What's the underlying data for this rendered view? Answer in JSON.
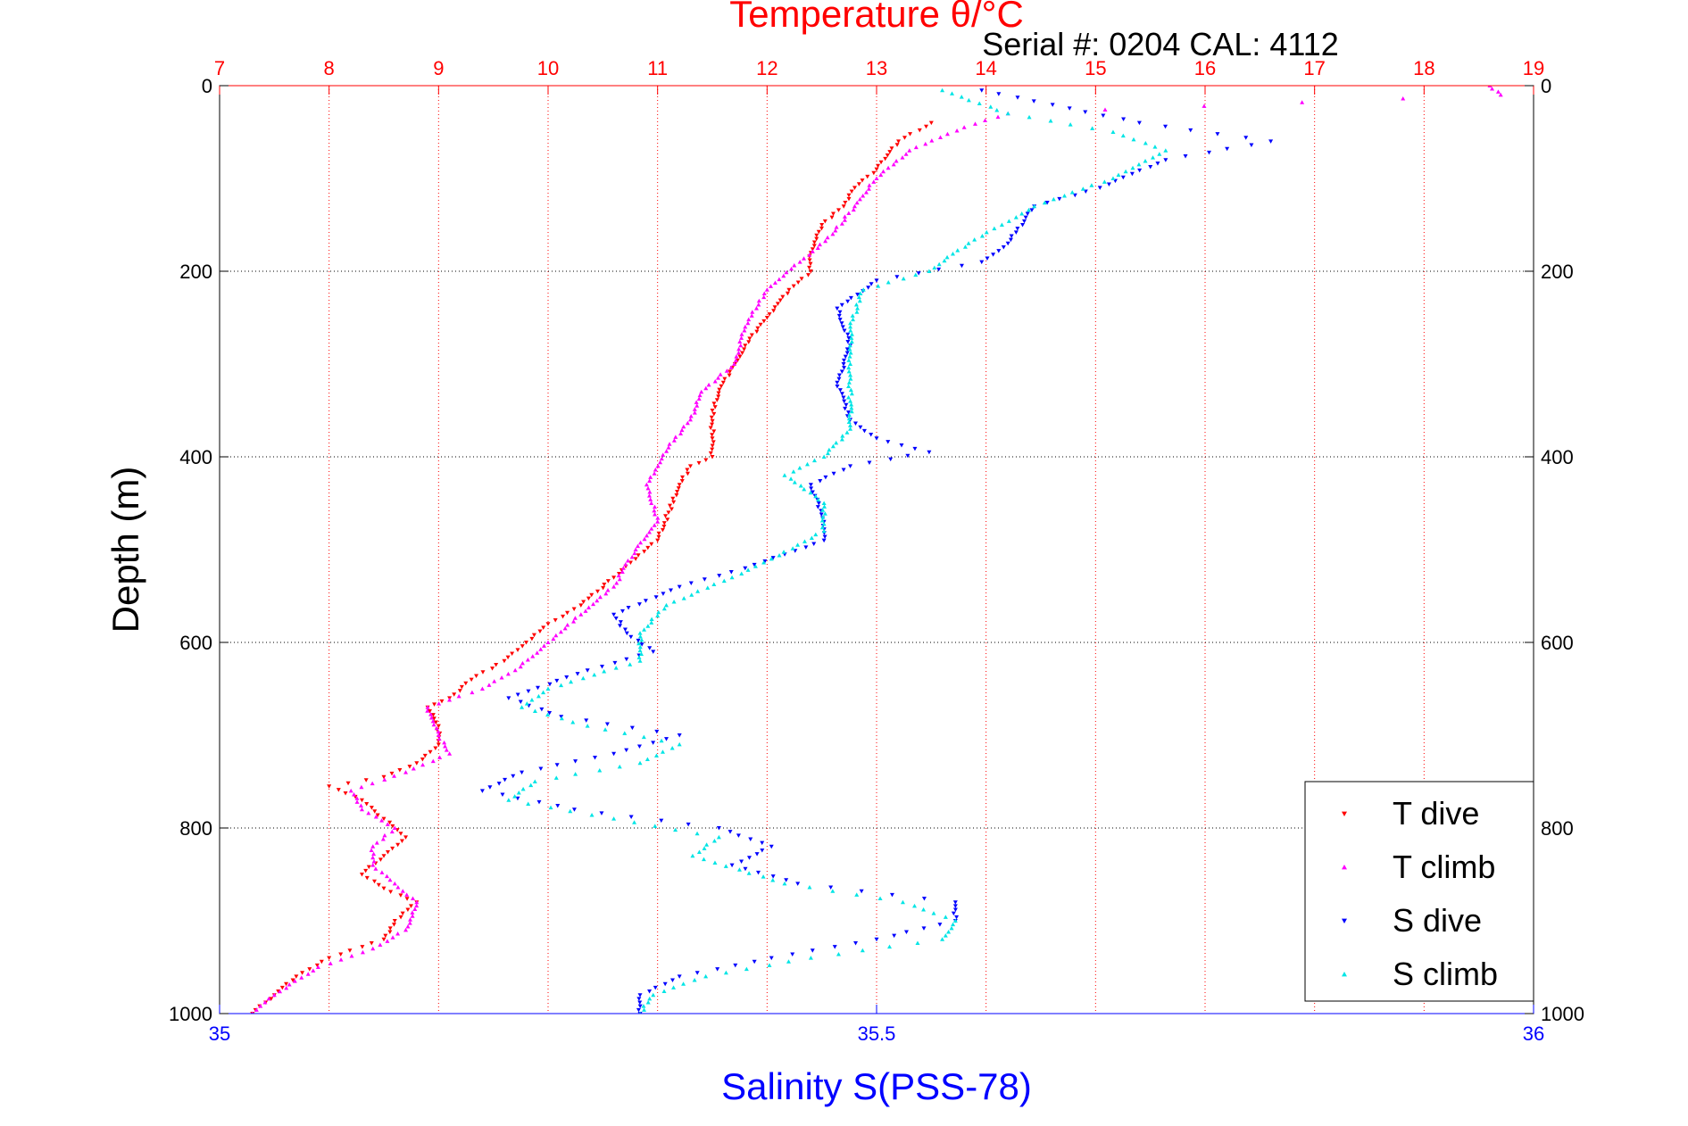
{
  "chart_data": {
    "type": "scatter",
    "title": "Temperature θ/°C",
    "subtitle": "Serial #: 0204  CAL: 4112",
    "xlabel": "Salinity S(PSS-78)",
    "ylabel": "Depth (m)",
    "axes": {
      "temperature": {
        "position": "top",
        "range": [
          7,
          19
        ],
        "ticks": [
          "7",
          "8",
          "9",
          "10",
          "11",
          "12",
          "13",
          "14",
          "15",
          "16",
          "17",
          "18",
          "19"
        ],
        "color": "#ff0000"
      },
      "salinity": {
        "position": "bottom",
        "range": [
          35,
          36
        ],
        "ticks": [
          "35",
          "35.5",
          "36"
        ],
        "color": "#0000ff"
      },
      "depth": {
        "position": "left-right",
        "range": [
          0,
          1000
        ],
        "reversed": true,
        "ticks": [
          "0",
          "200",
          "400",
          "600",
          "800",
          "1000"
        ],
        "color": "#000000"
      }
    },
    "grid": true,
    "legend": {
      "placement": "bottom-right",
      "entries": [
        "T dive",
        "T climb",
        "S dive",
        "S climb"
      ]
    },
    "series": [
      {
        "name": "T dive",
        "axis": "temperature",
        "color": "#ff0000",
        "marker": "triangle-down",
        "points": [
          [
            13.5,
            40
          ],
          [
            13.2,
            60
          ],
          [
            13.0,
            90
          ],
          [
            12.8,
            110
          ],
          [
            12.7,
            130
          ],
          [
            12.5,
            150
          ],
          [
            12.4,
            180
          ],
          [
            12.4,
            200
          ],
          [
            12.2,
            220
          ],
          [
            12.0,
            250
          ],
          [
            11.8,
            280
          ],
          [
            11.6,
            320
          ],
          [
            11.5,
            350
          ],
          [
            11.5,
            380
          ],
          [
            11.5,
            400
          ],
          [
            11.3,
            410
          ],
          [
            11.2,
            430
          ],
          [
            11.1,
            460
          ],
          [
            11.0,
            490
          ],
          [
            10.8,
            510
          ],
          [
            10.6,
            530
          ],
          [
            10.3,
            560
          ],
          [
            10.0,
            580
          ],
          [
            9.8,
            600
          ],
          [
            9.6,
            620
          ],
          [
            9.3,
            640
          ],
          [
            9.1,
            660
          ],
          [
            8.9,
            670
          ],
          [
            9.0,
            690
          ],
          [
            9.0,
            710
          ],
          [
            8.8,
            730
          ],
          [
            8.5,
            745
          ],
          [
            8.0,
            755
          ],
          [
            8.3,
            770
          ],
          [
            8.5,
            790
          ],
          [
            8.7,
            810
          ],
          [
            8.5,
            830
          ],
          [
            8.3,
            850
          ],
          [
            8.5,
            865
          ],
          [
            8.8,
            880
          ],
          [
            8.6,
            900
          ],
          [
            8.5,
            920
          ],
          [
            8.0,
            940
          ],
          [
            7.7,
            960
          ],
          [
            7.5,
            980
          ],
          [
            7.3,
            1000
          ]
        ]
      },
      {
        "name": "T climb",
        "axis": "temperature",
        "color": "#ff00ff",
        "marker": "triangle-up",
        "points": [
          [
            18.6,
            0
          ],
          [
            18.7,
            10
          ],
          [
            14.2,
            30
          ],
          [
            13.8,
            45
          ],
          [
            13.3,
            70
          ],
          [
            13.0,
            100
          ],
          [
            12.8,
            130
          ],
          [
            12.6,
            160
          ],
          [
            12.3,
            190
          ],
          [
            12.0,
            220
          ],
          [
            11.8,
            260
          ],
          [
            11.7,
            300
          ],
          [
            11.4,
            330
          ],
          [
            11.3,
            360
          ],
          [
            11.1,
            390
          ],
          [
            10.9,
            430
          ],
          [
            11.0,
            470
          ],
          [
            10.8,
            500
          ],
          [
            10.6,
            540
          ],
          [
            10.3,
            570
          ],
          [
            10.0,
            600
          ],
          [
            9.7,
            630
          ],
          [
            9.4,
            650
          ],
          [
            8.9,
            670
          ],
          [
            9.0,
            700
          ],
          [
            9.1,
            720
          ],
          [
            8.7,
            740
          ],
          [
            8.2,
            760
          ],
          [
            8.3,
            780
          ],
          [
            8.6,
            800
          ],
          [
            8.4,
            820
          ],
          [
            8.4,
            840
          ],
          [
            8.6,
            860
          ],
          [
            8.8,
            880
          ],
          [
            8.7,
            910
          ],
          [
            8.4,
            930
          ],
          [
            7.9,
            950
          ],
          [
            7.5,
            980
          ],
          [
            7.3,
            1000
          ]
        ]
      },
      {
        "name": "S dive",
        "axis": "salinity",
        "color": "#0000ff",
        "marker": "triangle-down",
        "points": [
          [
            35.58,
            5
          ],
          [
            35.7,
            40
          ],
          [
            35.8,
            60
          ],
          [
            35.72,
            80
          ],
          [
            35.67,
            110
          ],
          [
            35.62,
            130
          ],
          [
            35.6,
            170
          ],
          [
            35.58,
            190
          ],
          [
            35.5,
            210
          ],
          [
            35.47,
            240
          ],
          [
            35.48,
            280
          ],
          [
            35.47,
            320
          ],
          [
            35.48,
            360
          ],
          [
            35.5,
            380
          ],
          [
            35.54,
            395
          ],
          [
            35.48,
            410
          ],
          [
            35.45,
            430
          ],
          [
            35.46,
            470
          ],
          [
            35.46,
            490
          ],
          [
            35.4,
            520
          ],
          [
            35.35,
            540
          ],
          [
            35.3,
            570
          ],
          [
            35.31,
            590
          ],
          [
            35.33,
            610
          ],
          [
            35.28,
            630
          ],
          [
            35.22,
            660
          ],
          [
            35.26,
            680
          ],
          [
            35.35,
            700
          ],
          [
            35.3,
            720
          ],
          [
            35.23,
            740
          ],
          [
            35.2,
            760
          ],
          [
            35.27,
            780
          ],
          [
            35.38,
            800
          ],
          [
            35.42,
            820
          ],
          [
            35.39,
            840
          ],
          [
            35.44,
            860
          ],
          [
            35.56,
            880
          ],
          [
            35.56,
            900
          ],
          [
            35.5,
            920
          ],
          [
            35.42,
            940
          ],
          [
            35.35,
            960
          ],
          [
            35.32,
            980
          ],
          [
            35.32,
            1000
          ]
        ]
      },
      {
        "name": "S climb",
        "axis": "salinity",
        "color": "#00e5e5",
        "marker": "triangle-up",
        "points": [
          [
            35.55,
            5
          ],
          [
            35.6,
            30
          ],
          [
            35.68,
            50
          ],
          [
            35.72,
            70
          ],
          [
            35.68,
            100
          ],
          [
            35.62,
            130
          ],
          [
            35.57,
            170
          ],
          [
            35.54,
            200
          ],
          [
            35.49,
            220
          ],
          [
            35.48,
            260
          ],
          [
            35.48,
            300
          ],
          [
            35.48,
            340
          ],
          [
            35.48,
            370
          ],
          [
            35.46,
            400
          ],
          [
            35.43,
            420
          ],
          [
            35.46,
            450
          ],
          [
            35.46,
            480
          ],
          [
            35.42,
            510
          ],
          [
            35.39,
            530
          ],
          [
            35.34,
            560
          ],
          [
            35.32,
            590
          ],
          [
            35.32,
            620
          ],
          [
            35.25,
            650
          ],
          [
            35.23,
            670
          ],
          [
            35.28,
            690
          ],
          [
            35.35,
            710
          ],
          [
            35.32,
            730
          ],
          [
            35.24,
            750
          ],
          [
            35.22,
            770
          ],
          [
            35.3,
            790
          ],
          [
            35.38,
            810
          ],
          [
            35.36,
            830
          ],
          [
            35.43,
            860
          ],
          [
            35.52,
            880
          ],
          [
            35.56,
            900
          ],
          [
            35.55,
            920
          ],
          [
            35.45,
            940
          ],
          [
            35.37,
            960
          ],
          [
            35.33,
            980
          ],
          [
            35.32,
            1000
          ]
        ]
      }
    ]
  }
}
